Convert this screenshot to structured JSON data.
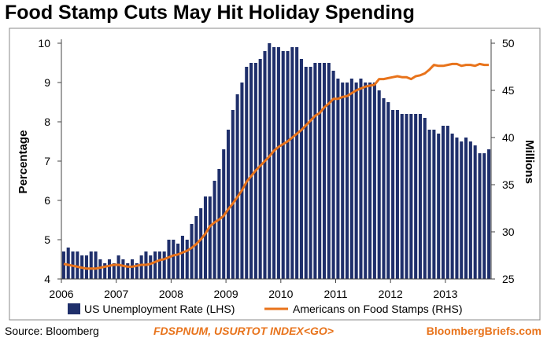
{
  "chart_data": {
    "type": "bar",
    "title": "Food Stamp Cuts May Hit Holiday Spending",
    "ylabel_left": "Percentage",
    "ylabel_right": "Millions",
    "ylim_left": [
      4,
      10
    ],
    "ylim_right": [
      25,
      50
    ],
    "yticks_left": [
      "4",
      "5",
      "6",
      "7",
      "8",
      "9",
      "10"
    ],
    "yticks_right": [
      "25",
      "30",
      "35",
      "40",
      "45",
      "50"
    ],
    "x_ticks": [
      "2006",
      "2007",
      "2008",
      "2009",
      "2010",
      "2011",
      "2012",
      "2013"
    ],
    "x_range": [
      "2006-01",
      "2013-10"
    ],
    "grid": false,
    "legend_position": "bottom",
    "series": [
      {
        "name": "US Unemployment Rate (LHS)",
        "type": "bar",
        "axis": "left",
        "color": "#1f2f6b",
        "start": "2006-01",
        "values": [
          4.7,
          4.8,
          4.7,
          4.7,
          4.6,
          4.6,
          4.7,
          4.7,
          4.5,
          4.4,
          4.5,
          4.4,
          4.6,
          4.5,
          4.4,
          4.5,
          4.4,
          4.6,
          4.7,
          4.6,
          4.7,
          4.7,
          4.7,
          5.0,
          5.0,
          4.9,
          5.1,
          5.0,
          5.4,
          5.6,
          5.8,
          6.1,
          6.1,
          6.5,
          6.8,
          7.3,
          7.8,
          8.3,
          8.7,
          9.0,
          9.4,
          9.5,
          9.5,
          9.6,
          9.8,
          10.0,
          9.9,
          9.9,
          9.8,
          9.8,
          9.9,
          9.9,
          9.6,
          9.4,
          9.4,
          9.5,
          9.5,
          9.5,
          9.5,
          9.3,
          9.1,
          9.0,
          9.0,
          9.1,
          9.0,
          9.1,
          9.0,
          9.0,
          9.0,
          8.8,
          8.6,
          8.5,
          8.3,
          8.3,
          8.2,
          8.2,
          8.2,
          8.2,
          8.2,
          8.1,
          7.8,
          7.8,
          7.7,
          7.9,
          7.9,
          7.7,
          7.6,
          7.5,
          7.6,
          7.5,
          7.4,
          7.2,
          7.2,
          7.3
        ]
      },
      {
        "name": "Americans on Food Stamps (RHS)",
        "type": "line",
        "axis": "right",
        "color": "#e8731b",
        "start": "2006-01",
        "values": [
          26.6,
          26.5,
          26.4,
          26.3,
          26.2,
          26.1,
          26.1,
          26.1,
          26.2,
          26.3,
          26.4,
          26.5,
          26.5,
          26.4,
          26.3,
          26.3,
          26.4,
          26.5,
          26.5,
          26.6,
          26.8,
          27.0,
          27.1,
          27.3,
          27.5,
          27.6,
          27.8,
          28.0,
          28.3,
          28.7,
          29.2,
          29.8,
          30.6,
          31.0,
          31.3,
          31.7,
          32.4,
          33.0,
          33.7,
          34.4,
          35.3,
          35.9,
          36.5,
          37.0,
          37.5,
          38.0,
          38.6,
          39.0,
          39.3,
          39.6,
          40.0,
          40.4,
          40.8,
          41.3,
          41.8,
          42.3,
          42.6,
          43.2,
          43.6,
          44.1,
          44.1,
          44.3,
          44.4,
          44.7,
          45.0,
          45.2,
          45.4,
          45.5,
          45.6,
          46.2,
          46.2,
          46.3,
          46.4,
          46.5,
          46.4,
          46.4,
          46.2,
          46.5,
          46.6,
          46.8,
          47.2,
          47.7,
          47.6,
          47.6,
          47.7,
          47.8,
          47.8,
          47.6,
          47.7,
          47.7,
          47.6,
          47.8,
          47.7,
          47.7
        ]
      }
    ]
  },
  "footer": {
    "source": "Source: Bloomberg",
    "ticker": "FDSPNUM, USURTOT INDEX<GO>",
    "brand": "BloombergBriefs.com"
  },
  "colors": {
    "bar": "#1f2f6b",
    "line": "#e8731b",
    "ticker": "#e8731b",
    "brand": "#e8731b",
    "frame": "#555555"
  }
}
